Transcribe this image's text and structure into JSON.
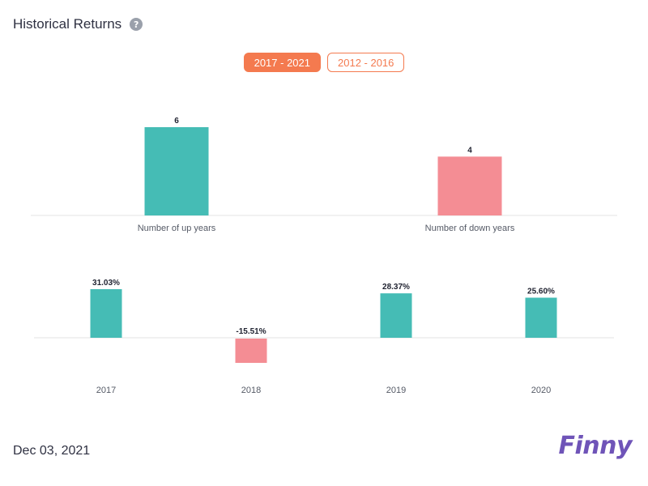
{
  "header": {
    "title": "Historical Returns",
    "help_icon": "question-circle-icon"
  },
  "tabs": [
    {
      "label": "2017 - 2021",
      "active": true
    },
    {
      "label": "2012 - 2016",
      "active": false
    }
  ],
  "colors": {
    "up": "#45bcb5",
    "down": "#f48d94",
    "accent": "#f47a4f",
    "axis": "#e3e3e3",
    "brand": "#6f54b8"
  },
  "chart_data": [
    {
      "type": "bar",
      "categories": [
        "Number of up years",
        "Number of down years"
      ],
      "values": [
        6,
        4
      ],
      "value_labels": [
        "6",
        "4"
      ],
      "ylim": [
        0,
        6
      ]
    },
    {
      "type": "bar",
      "categories": [
        "2017",
        "2018",
        "2019",
        "2020"
      ],
      "values": [
        31.03,
        -15.51,
        28.37,
        25.6
      ],
      "value_labels": [
        "31.03%",
        "-15.51%",
        "28.37%",
        "25.60%"
      ],
      "ylim": [
        -15.51,
        31.03
      ]
    }
  ],
  "footer": {
    "date": "Dec 03, 2021",
    "logo": "Finny"
  }
}
